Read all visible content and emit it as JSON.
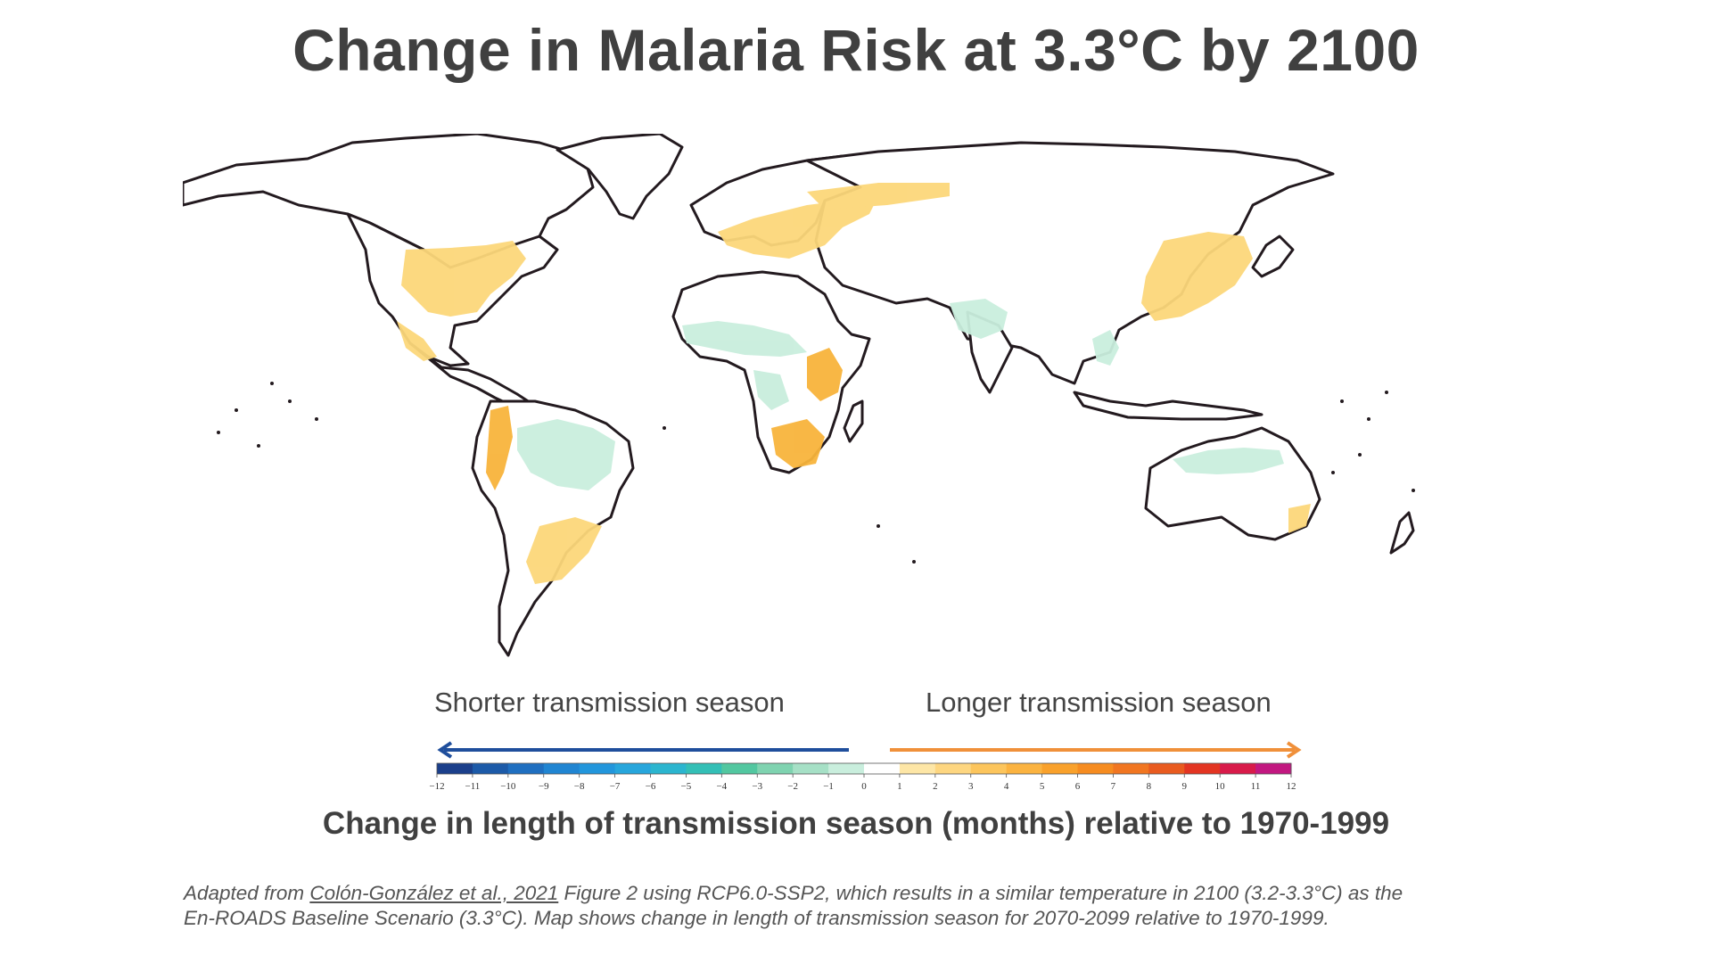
{
  "title": "Change in Malaria Risk at 3.3°C by 2100",
  "legend": {
    "left_label": "Shorter transmission season",
    "right_label": "Longer transmission season",
    "ticks": [
      "-12",
      "-11",
      "-10",
      "-9",
      "-8",
      "-7",
      "-6",
      "-5",
      "-4",
      "-3",
      "-2",
      "-1",
      "0",
      "1",
      "2",
      "3",
      "4",
      "5",
      "6",
      "7",
      "8",
      "9",
      "10",
      "11",
      "12"
    ],
    "colors": [
      "#1b3f8b",
      "#1c5aa8",
      "#1f6fc0",
      "#2085d2",
      "#2296dc",
      "#27a6dc",
      "#2bb5cf",
      "#33bfb6",
      "#52c7a0",
      "#7fd3b0",
      "#a6e0c6",
      "#c9eedd",
      "#ffffff",
      "#fde6a6",
      "#fdd680",
      "#fcc55c",
      "#fbb340",
      "#f9a12b",
      "#f68c20",
      "#f17621",
      "#e95b1f",
      "#e33522",
      "#d81b4a",
      "#c21880"
    ],
    "left_arrow_color": "#1f4e9c",
    "right_arrow_color": "#f0903a"
  },
  "subtitle": "Change in length of transmission season (months) relative to 1970-1999",
  "source": {
    "prefix": "Adapted from ",
    "link_text": "Colón-González et al., 2021",
    "line1_rest": " Figure 2 using RCP6.0-SSP2, which results in a similar temperature in 2100 (3.2-3.3°C) as the",
    "line2": "En-ROADS Baseline Scenario (3.3°C). Map shows change in length of transmission season for 2070-2099 relative to 1970-1999."
  },
  "map_colors": {
    "land_outline": "#231a1f",
    "longer_season": "#fcd77a",
    "longer_season_strong": "#f8b43c",
    "shorter_season": "#c9eedd"
  }
}
